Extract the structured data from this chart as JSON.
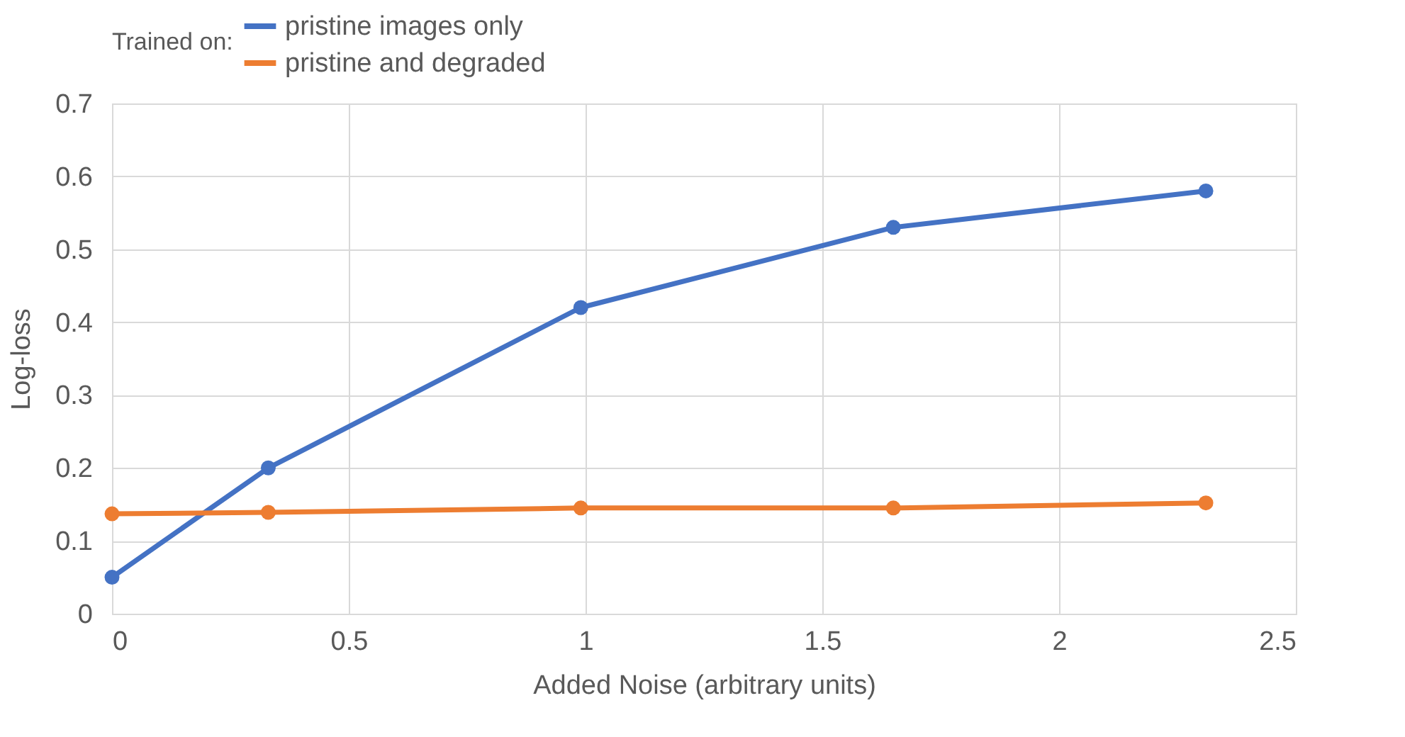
{
  "chart_data": {
    "type": "line",
    "xlabel": "Added Noise    (arbitrary units)",
    "ylabel": "Log-loss",
    "legend_title": "Trained on:",
    "series": [
      {
        "name": "pristine images only",
        "color": "#4472c4",
        "x": [
          0,
          0.33,
          0.99,
          1.65,
          2.31
        ],
        "values": [
          0.05,
          0.2,
          0.42,
          0.53,
          0.58
        ]
      },
      {
        "name": "pristine and degraded",
        "color": "#ed7d31",
        "x": [
          0,
          0.33,
          0.99,
          1.65,
          2.31
        ],
        "values": [
          0.137,
          0.139,
          0.145,
          0.145,
          0.152
        ]
      }
    ],
    "xlim": [
      0,
      2.5
    ],
    "xticks": [
      0,
      0.5,
      1,
      1.5,
      2,
      2.5
    ],
    "ylim": [
      0,
      0.7
    ],
    "yticks": [
      0,
      0.1,
      0.2,
      0.3,
      0.4,
      0.5,
      0.6,
      0.7
    ],
    "grid": true,
    "legend": "top",
    "marker": "circle",
    "line_style": "solid"
  }
}
